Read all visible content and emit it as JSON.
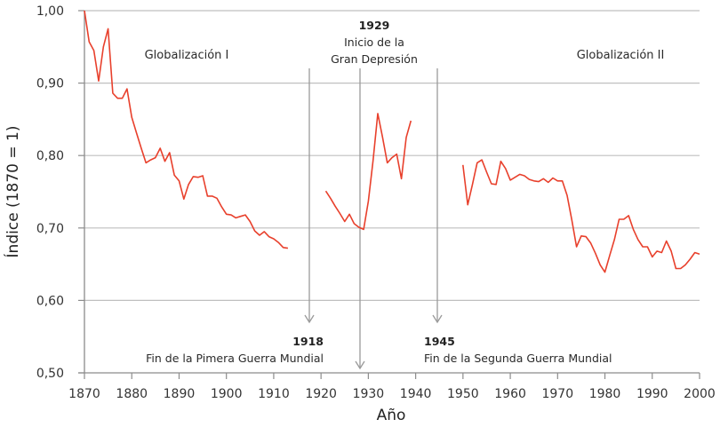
{
  "chart_data": {
    "type": "line",
    "title": "",
    "xlabel": "Año",
    "ylabel": "Índice (1870 = 1)",
    "xlim": [
      1870,
      2000
    ],
    "ylim": [
      0.5,
      1.0
    ],
    "grid": "horizontal",
    "x_ticks": [
      "1870",
      "1880",
      "1890",
      "1900",
      "1910",
      "1920",
      "1930",
      "1940",
      "1950",
      "1960",
      "1970",
      "1980",
      "1990",
      "2000"
    ],
    "y_ticks": [
      "0,50",
      "0,60",
      "0,70",
      "0,80",
      "0,90",
      "1,00"
    ],
    "series": [
      {
        "name": "Índice",
        "color": "#e8402c",
        "segments": [
          {
            "x": [
              1870,
              1871,
              1872,
              1873,
              1874,
              1875,
              1876,
              1877,
              1878,
              1879,
              1880,
              1881,
              1882,
              1883,
              1884,
              1885,
              1886,
              1887,
              1888,
              1889,
              1890,
              1891,
              1892,
              1893,
              1894,
              1895,
              1896,
              1897,
              1898,
              1899,
              1900,
              1901,
              1902,
              1903,
              1904,
              1905,
              1906,
              1907,
              1908,
              1909,
              1910,
              1911,
              1912,
              1913
            ],
            "y": [
              1.0,
              0.957,
              0.945,
              0.903,
              0.95,
              0.975,
              0.886,
              0.879,
              0.879,
              0.892,
              0.853,
              0.831,
              0.81,
              0.79,
              0.794,
              0.797,
              0.81,
              0.792,
              0.804,
              0.773,
              0.765,
              0.74,
              0.76,
              0.771,
              0.77,
              0.772,
              0.744,
              0.744,
              0.741,
              0.729,
              0.719,
              0.718,
              0.714,
              0.716,
              0.718,
              0.709,
              0.696,
              0.69,
              0.695,
              0.688,
              0.685,
              0.68,
              0.673,
              0.672
            ]
          },
          {
            "x": [
              1921,
              1922,
              1923,
              1924,
              1925,
              1926,
              1927,
              1928,
              1929,
              1930,
              1931,
              1932,
              1933,
              1934,
              1935,
              1936,
              1937,
              1938,
              1939
            ],
            "y": [
              0.751,
              0.741,
              0.73,
              0.72,
              0.709,
              0.719,
              0.706,
              0.701,
              0.698,
              0.737,
              0.793,
              0.858,
              0.825,
              0.79,
              0.797,
              0.802,
              0.768,
              0.825,
              0.848
            ]
          },
          {
            "x": [
              1950,
              1951,
              1952,
              1953,
              1954,
              1955,
              1956,
              1957,
              1958,
              1959,
              1960,
              1961,
              1962,
              1963,
              1964,
              1965,
              1966,
              1967,
              1968,
              1969,
              1970,
              1971,
              1972,
              1973,
              1974,
              1975,
              1976,
              1977,
              1978,
              1979,
              1980,
              1981,
              1982,
              1983,
              1984,
              1985,
              1986,
              1987,
              1988,
              1989,
              1990,
              1991,
              1992,
              1993,
              1994,
              1995,
              1996,
              1997,
              1998,
              1999,
              2000
            ],
            "y": [
              0.787,
              0.732,
              0.76,
              0.79,
              0.794,
              0.777,
              0.761,
              0.76,
              0.792,
              0.782,
              0.766,
              0.77,
              0.774,
              0.772,
              0.767,
              0.765,
              0.764,
              0.768,
              0.763,
              0.769,
              0.765,
              0.765,
              0.745,
              0.711,
              0.674,
              0.689,
              0.688,
              0.679,
              0.665,
              0.649,
              0.639,
              0.662,
              0.684,
              0.712,
              0.712,
              0.717,
              0.698,
              0.684,
              0.674,
              0.674,
              0.66,
              0.668,
              0.666,
              0.682,
              0.668,
              0.644,
              0.644,
              0.649,
              0.657,
              0.666,
              0.664
            ]
          }
        ]
      }
    ],
    "annotations": {
      "era_labels": [
        {
          "id": "globalizacion-1",
          "text": "Globalización I"
        },
        {
          "id": "globalizacion-2",
          "text": "Globalización II"
        }
      ],
      "events": [
        {
          "id": "event-1918",
          "year": "1918",
          "label": "Fin de la Pimera Guerra Mundial"
        },
        {
          "id": "event-1929",
          "year": "1929",
          "label_line1": "Inicio de la",
          "label_line2": "Gran Depresión"
        },
        {
          "id": "event-1945",
          "year": "1945",
          "label": "Fin de la Segunda Guerra Mundial"
        }
      ]
    }
  },
  "colors": {
    "line": "#e8402c",
    "grid": "#bfbfbf",
    "axis": "#8c8c8c",
    "arrow": "#9a9a9a",
    "text": "#2a2a2a"
  }
}
